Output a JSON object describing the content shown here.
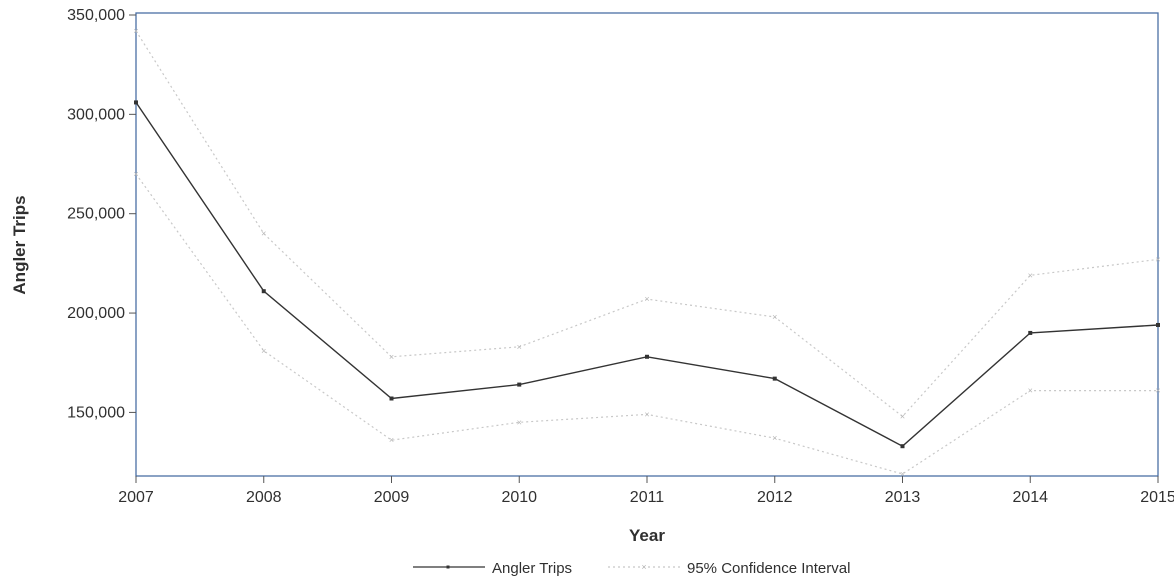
{
  "chart_data": {
    "type": "line",
    "title": "",
    "xlabel": "Year",
    "ylabel": "Angler Trips",
    "x": [
      2007,
      2008,
      2009,
      2010,
      2011,
      2012,
      2013,
      2014,
      2015
    ],
    "x_tick_labels": [
      "2007",
      "2008",
      "2009",
      "2010",
      "2011",
      "2012",
      "2013",
      "2014",
      "2015"
    ],
    "y_ticks": [
      150000,
      200000,
      250000,
      300000,
      350000
    ],
    "y_tick_labels": [
      "150,000",
      "200,000",
      "250,000",
      "300,000",
      "350,000"
    ],
    "ylim": [
      118000,
      351000
    ],
    "xlim": [
      2007,
      2015
    ],
    "grid": false,
    "legend_position": "bottom",
    "series": [
      {
        "name": "Angler Trips",
        "style": "solid-line-square-markers",
        "color": "#333333",
        "values": [
          306000,
          211000,
          157000,
          164000,
          178000,
          167000,
          133000,
          190000,
          194000
        ]
      },
      {
        "name": "95% Confidence Interval",
        "role": "upper-bound",
        "style": "dotted-line-x-markers",
        "color": "#c8c8c8",
        "values": [
          342000,
          240000,
          178000,
          183000,
          207000,
          198000,
          148000,
          219000,
          227000
        ]
      },
      {
        "name": "",
        "role": "lower-bound",
        "style": "dotted-line-x-markers",
        "color": "#c8c8c8",
        "values": [
          270000,
          181000,
          136000,
          145000,
          149000,
          137000,
          119000,
          161000,
          161000
        ]
      }
    ]
  },
  "legend": {
    "items": [
      {
        "label": "Angler Trips"
      },
      {
        "label": "95% Confidence Interval"
      }
    ]
  },
  "colors": {
    "frame": "#4a6fa5",
    "main_line": "#333333",
    "ci_line": "#c8c8c8",
    "text": "#303030"
  }
}
